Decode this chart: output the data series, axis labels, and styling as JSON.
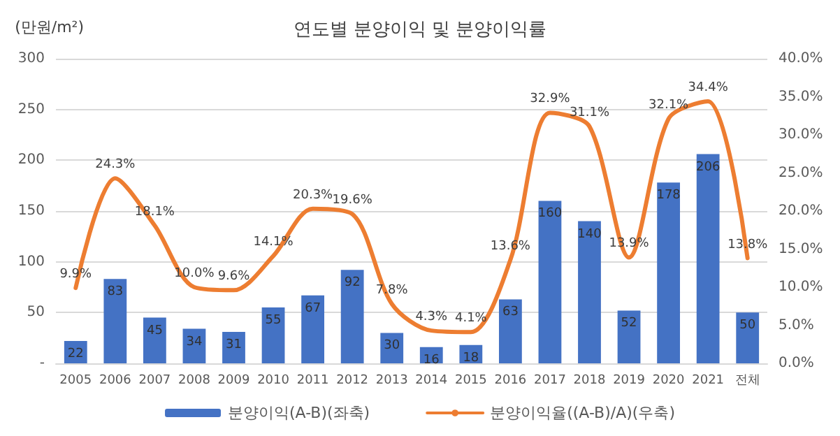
{
  "chart_data": {
    "type": "bar",
    "title": "연도별 분양이익 및 분양이익률",
    "ylabel": "(만원/m²)",
    "categories": [
      "2005",
      "2006",
      "2007",
      "2008",
      "2009",
      "2010",
      "2011",
      "2012",
      "2013",
      "2014",
      "2015",
      "2016",
      "2017",
      "2018",
      "2019",
      "2020",
      "2021",
      "전체"
    ],
    "series": [
      {
        "name": "분양이익(A-B)(좌축)",
        "color": "#4472c4",
        "values": [
          22,
          83,
          45,
          34,
          31,
          55,
          67,
          92,
          30,
          16,
          18,
          63,
          160,
          140,
          52,
          178,
          206,
          50
        ],
        "value_labels": [
          "22",
          "83",
          "45",
          "34",
          "31",
          "55",
          "67",
          "92",
          "30",
          "16",
          "18",
          "63",
          "160",
          "140",
          "52",
          "178",
          "206",
          "50"
        ]
      },
      {
        "name": "분양이익율((A-B)/A)(우축)",
        "type": "line",
        "axis": "y2",
        "color": "#ed7d31",
        "values": [
          9.9,
          24.3,
          18.1,
          10.0,
          9.6,
          14.1,
          20.3,
          19.6,
          7.8,
          4.3,
          4.1,
          13.6,
          32.9,
          31.1,
          13.9,
          32.1,
          34.4,
          13.8
        ],
        "value_labels": [
          "9.9%",
          "24.3%",
          "18.1%",
          "10.0%",
          "9.6%",
          "14.1%",
          "20.3%",
          "19.6%",
          "7.8%",
          "4.3%",
          "4.1%",
          "13.6%",
          "32.9%",
          "31.1%",
          "13.9%",
          "32.1%",
          "34.4%",
          "13.8%"
        ]
      }
    ],
    "ylim": [
      0,
      300
    ],
    "yticks": [
      {
        "value": 0,
        "label": "-"
      },
      50,
      100,
      150,
      200,
      250,
      300
    ],
    "y2lim": [
      0,
      40
    ],
    "y2ticks": [
      {
        "value": 0,
        "label": "0.0%"
      },
      {
        "value": 5,
        "label": "5.0%"
      },
      {
        "value": 10,
        "label": "10.0%"
      },
      {
        "value": 15,
        "label": "15.0%"
      },
      {
        "value": 20,
        "label": "20.0%"
      },
      {
        "value": 25,
        "label": "25.0%"
      },
      {
        "value": 30,
        "label": "30.0%"
      },
      {
        "value": 35,
        "label": "35.0%"
      },
      {
        "value": 40,
        "label": "40.0%"
      }
    ],
    "grid": "y",
    "legend": "bottom",
    "marker": "none",
    "line_style": "solid"
  }
}
